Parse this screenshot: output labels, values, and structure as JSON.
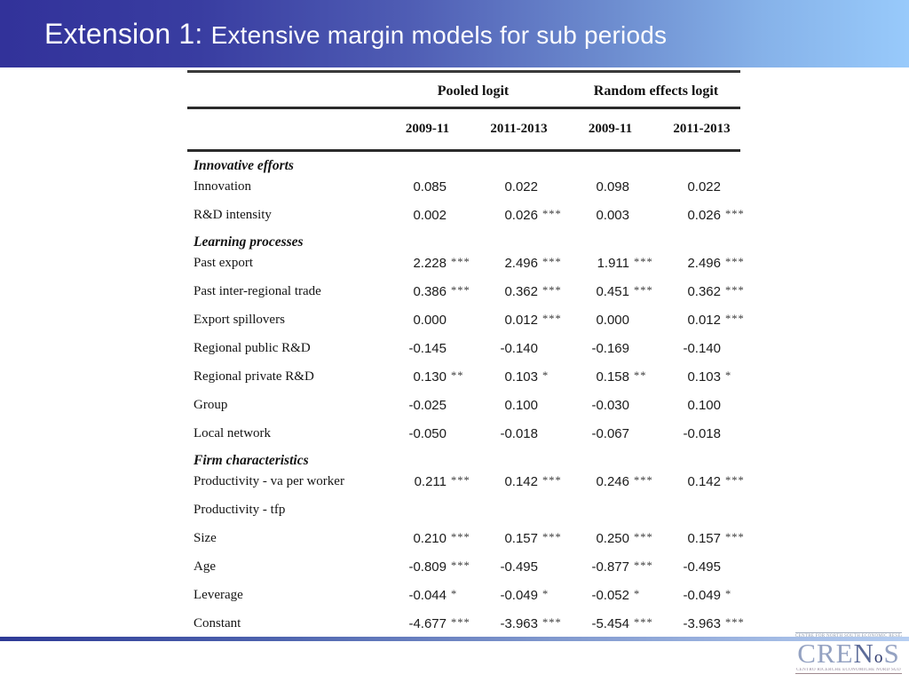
{
  "slide": {
    "title_prefix": "Extension 1: ",
    "title_rest": "Extensive margin models for sub periods"
  },
  "table": {
    "group_headers": [
      "Pooled logit",
      "Random effects logit"
    ],
    "column_headers": [
      "2009-11",
      "2011-2013",
      "2009-11",
      "2011-2013"
    ],
    "rows": [
      {
        "type": "section",
        "label": "Innovative efforts"
      },
      {
        "type": "data",
        "label": "Innovation",
        "cells": [
          [
            "0.085",
            ""
          ],
          [
            "0.022",
            ""
          ],
          [
            "0.098",
            ""
          ],
          [
            "0.022",
            ""
          ]
        ]
      },
      {
        "type": "data",
        "label": "R&D intensity",
        "cells": [
          [
            "0.002",
            ""
          ],
          [
            "0.026",
            "***"
          ],
          [
            "0.003",
            ""
          ],
          [
            "0.026",
            "***"
          ]
        ]
      },
      {
        "type": "section",
        "label": "Learning processes"
      },
      {
        "type": "data",
        "label": "Past export",
        "cells": [
          [
            "2.228",
            "***"
          ],
          [
            "2.496",
            "***"
          ],
          [
            "1.911",
            "***"
          ],
          [
            "2.496",
            "***"
          ]
        ]
      },
      {
        "type": "data",
        "label": "Past inter-regional trade",
        "cells": [
          [
            "0.386",
            "***"
          ],
          [
            "0.362",
            "***"
          ],
          [
            "0.451",
            "***"
          ],
          [
            "0.362",
            "***"
          ]
        ]
      },
      {
        "type": "data",
        "label": "Export spillovers",
        "cells": [
          [
            "0.000",
            ""
          ],
          [
            "0.012",
            "***"
          ],
          [
            "0.000",
            ""
          ],
          [
            "0.012",
            "***"
          ]
        ]
      },
      {
        "type": "data",
        "label": "Regional public R&D",
        "cells": [
          [
            "-0.145",
            ""
          ],
          [
            "-0.140",
            ""
          ],
          [
            "-0.169",
            ""
          ],
          [
            "-0.140",
            ""
          ]
        ]
      },
      {
        "type": "data",
        "label": "Regional private R&D",
        "cells": [
          [
            "0.130",
            "**"
          ],
          [
            "0.103",
            "*"
          ],
          [
            "0.158",
            "**"
          ],
          [
            "0.103",
            "*"
          ]
        ]
      },
      {
        "type": "data",
        "label": "Group",
        "cells": [
          [
            "-0.025",
            ""
          ],
          [
            "0.100",
            ""
          ],
          [
            "-0.030",
            ""
          ],
          [
            "0.100",
            ""
          ]
        ]
      },
      {
        "type": "data",
        "label": "Local network",
        "cells": [
          [
            "-0.050",
            ""
          ],
          [
            "-0.018",
            ""
          ],
          [
            "-0.067",
            ""
          ],
          [
            "-0.018",
            ""
          ]
        ]
      },
      {
        "type": "section",
        "label": "Firm characteristics"
      },
      {
        "type": "data",
        "label": "Productivity - va per worker",
        "cells": [
          [
            "0.211",
            "***"
          ],
          [
            "0.142",
            "***"
          ],
          [
            "0.246",
            "***"
          ],
          [
            "0.142",
            "***"
          ]
        ]
      },
      {
        "type": "data",
        "label": "Productivity - tfp",
        "cells": [
          [
            "",
            ""
          ],
          [
            "",
            ""
          ],
          [
            "",
            ""
          ],
          [
            "",
            ""
          ]
        ]
      },
      {
        "type": "data",
        "label": "Size",
        "cells": [
          [
            "0.210",
            "***"
          ],
          [
            "0.157",
            "***"
          ],
          [
            "0.250",
            "***"
          ],
          [
            "0.157",
            "***"
          ]
        ]
      },
      {
        "type": "data",
        "label": "Age",
        "cells": [
          [
            "-0.809",
            "***"
          ],
          [
            "-0.495",
            ""
          ],
          [
            "-0.877",
            "***"
          ],
          [
            "-0.495",
            ""
          ]
        ]
      },
      {
        "type": "data",
        "label": "Leverage",
        "cells": [
          [
            "-0.044",
            "*"
          ],
          [
            "-0.049",
            "*"
          ],
          [
            "-0.052",
            "*"
          ],
          [
            "-0.049",
            "*"
          ]
        ]
      },
      {
        "type": "data",
        "label": "Constant",
        "cells": [
          [
            "-4.677",
            "***"
          ],
          [
            "-3.963",
            "***"
          ],
          [
            "-5.454",
            "***"
          ],
          [
            "-3.963",
            "***"
          ]
        ]
      }
    ]
  },
  "footer": {
    "logo": {
      "top_text": "CENTRE FOR NORTH SOUTH ECONOMIC RESEARCH",
      "cre": "CRE",
      "n": "N",
      "o": "o",
      "s": "S",
      "bottom_text": "CENTRO RICERCHE ECONOMICHE NORD SUD"
    }
  },
  "colors": {
    "header_gradient_left": "#32329a",
    "header_gradient_right": "#98cafb",
    "table_rule": "#2b2b2b",
    "logo_light": "#94a2c2",
    "logo_dark": "#2e3a6e",
    "bottom_bar_left": "#2e3a96",
    "bottom_bar_right": "#b7cff2"
  }
}
